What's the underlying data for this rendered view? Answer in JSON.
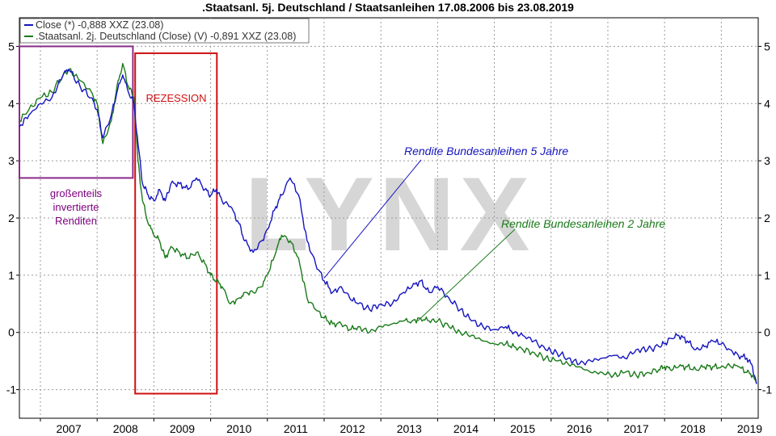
{
  "chart_data": {
    "type": "line",
    "title": ".Staatsanl. 5j. Deutschland / Staatsanleihen 17.08.2006 bis 23.08.2019",
    "xlabel": "",
    "ylabel": "",
    "xlim": [
      2006.63,
      2019.65
    ],
    "ylim": [
      -1.5,
      5.5
    ],
    "x_ticks": [
      "2007",
      "2008",
      "2009",
      "2010",
      "2011",
      "2012",
      "2013",
      "2014",
      "2015",
      "2016",
      "2017",
      "2018",
      "2019"
    ],
    "y_ticks": [
      "5",
      "4",
      "3",
      "2",
      "1",
      "0",
      "-1"
    ],
    "grid": true,
    "legend": {
      "placement": "top-left",
      "entries": [
        "Close (*) -0,888 XXZ (23.08)",
        ".Staatsanl. 2j. Deutschland (Close) (V) -0,891 XXZ (23.08)"
      ]
    },
    "series": [
      {
        "name": "Close (*) -0,888 XXZ (23.08)",
        "color": "#1515c0",
        "x": [
          2006.63,
          2006.8,
          2007.0,
          2007.2,
          2007.4,
          2007.5,
          2007.7,
          2007.9,
          2008.0,
          2008.1,
          2008.25,
          2008.35,
          2008.45,
          2008.55,
          2008.65,
          2008.72,
          2008.8,
          2008.9,
          2009.0,
          2009.1,
          2009.2,
          2009.3,
          2009.45,
          2009.6,
          2009.75,
          2009.9,
          2010.0,
          2010.1,
          2010.2,
          2010.35,
          2010.5,
          2010.6,
          2010.75,
          2010.9,
          2011.0,
          2011.15,
          2011.25,
          2011.4,
          2011.55,
          2011.7,
          2011.85,
          2012.0,
          2012.15,
          2012.3,
          2012.45,
          2012.6,
          2012.8,
          2013.0,
          2013.2,
          2013.4,
          2013.55,
          2013.7,
          2013.85,
          2014.0,
          2014.2,
          2014.4,
          2014.6,
          2014.8,
          2015.0,
          2015.2,
          2015.35,
          2015.5,
          2015.7,
          2015.9,
          2016.1,
          2016.3,
          2016.5,
          2016.7,
          2016.9,
          2017.1,
          2017.3,
          2017.5,
          2017.7,
          2017.9,
          2018.0,
          2018.1,
          2018.25,
          2018.4,
          2018.55,
          2018.7,
          2018.85,
          2019.0,
          2019.15,
          2019.3,
          2019.45,
          2019.55,
          2019.62
        ],
        "values": [
          3.6,
          3.8,
          4.0,
          4.1,
          4.5,
          4.6,
          4.3,
          4.1,
          3.9,
          3.4,
          3.8,
          4.2,
          4.5,
          4.2,
          4.0,
          3.3,
          2.6,
          2.4,
          2.3,
          2.5,
          2.3,
          2.6,
          2.6,
          2.5,
          2.7,
          2.5,
          2.4,
          2.5,
          2.3,
          2.2,
          1.9,
          1.6,
          1.4,
          1.6,
          1.8,
          2.2,
          2.4,
          2.7,
          2.4,
          1.6,
          1.2,
          0.9,
          0.7,
          0.8,
          0.6,
          0.5,
          0.4,
          0.5,
          0.5,
          0.7,
          0.8,
          0.9,
          0.7,
          0.8,
          0.6,
          0.4,
          0.2,
          0.1,
          0.05,
          0.1,
          0.0,
          -0.05,
          -0.15,
          -0.3,
          -0.35,
          -0.45,
          -0.55,
          -0.5,
          -0.45,
          -0.4,
          -0.45,
          -0.3,
          -0.3,
          -0.25,
          -0.2,
          -0.1,
          -0.05,
          -0.15,
          -0.3,
          -0.25,
          -0.15,
          -0.2,
          -0.3,
          -0.4,
          -0.45,
          -0.6,
          -0.9
        ]
      },
      {
        "name": ".Staatsanl. 2j. Deutschland (Close) (V) -0,891 XXZ (23.08)",
        "color": "#1a7a1a",
        "x": [
          2006.63,
          2006.8,
          2007.0,
          2007.2,
          2007.4,
          2007.5,
          2007.7,
          2007.9,
          2008.0,
          2008.1,
          2008.25,
          2008.35,
          2008.45,
          2008.55,
          2008.65,
          2008.72,
          2008.8,
          2008.9,
          2009.0,
          2009.1,
          2009.2,
          2009.3,
          2009.45,
          2009.6,
          2009.75,
          2009.9,
          2010.0,
          2010.1,
          2010.2,
          2010.35,
          2010.5,
          2010.6,
          2010.75,
          2010.9,
          2011.0,
          2011.15,
          2011.25,
          2011.4,
          2011.55,
          2011.7,
          2011.85,
          2012.0,
          2012.15,
          2012.3,
          2012.45,
          2012.6,
          2012.8,
          2013.0,
          2013.2,
          2013.4,
          2013.55,
          2013.7,
          2013.85,
          2014.0,
          2014.2,
          2014.4,
          2014.6,
          2014.8,
          2015.0,
          2015.2,
          2015.35,
          2015.5,
          2015.7,
          2015.9,
          2016.1,
          2016.3,
          2016.5,
          2016.7,
          2016.9,
          2017.1,
          2017.3,
          2017.5,
          2017.7,
          2017.9,
          2018.0,
          2018.1,
          2018.25,
          2018.4,
          2018.55,
          2018.7,
          2018.85,
          2019.0,
          2019.15,
          2019.3,
          2019.45,
          2019.55,
          2019.62
        ],
        "values": [
          3.7,
          3.9,
          4.1,
          4.2,
          4.5,
          4.6,
          4.4,
          4.2,
          4.0,
          3.3,
          3.7,
          4.3,
          4.7,
          4.3,
          4.1,
          3.0,
          2.3,
          1.9,
          1.7,
          1.6,
          1.3,
          1.5,
          1.4,
          1.3,
          1.4,
          1.2,
          1.0,
          0.9,
          0.8,
          0.5,
          0.6,
          0.7,
          0.7,
          0.8,
          1.0,
          1.4,
          1.7,
          1.6,
          1.3,
          0.6,
          0.4,
          0.25,
          0.15,
          0.15,
          0.05,
          0.1,
          0.0,
          0.1,
          0.15,
          0.2,
          0.2,
          0.25,
          0.2,
          0.2,
          0.1,
          0.0,
          -0.05,
          -0.15,
          -0.2,
          -0.2,
          -0.25,
          -0.3,
          -0.35,
          -0.45,
          -0.5,
          -0.55,
          -0.6,
          -0.7,
          -0.7,
          -0.75,
          -0.7,
          -0.75,
          -0.7,
          -0.65,
          -0.6,
          -0.65,
          -0.6,
          -0.6,
          -0.65,
          -0.6,
          -0.6,
          -0.6,
          -0.58,
          -0.6,
          -0.7,
          -0.75,
          -0.9
        ]
      }
    ],
    "annotations": [
      {
        "text": "REZESSION",
        "color": "#d01010"
      },
      {
        "text": "großenteils",
        "color": "#800080"
      },
      {
        "text": "invertierte",
        "color": "#800080"
      },
      {
        "text": "Renditen",
        "color": "#800080"
      },
      {
        "text": "Rendite Bundesanleihen 5 Jahre",
        "color": "#1515c0"
      },
      {
        "text": "Rendite Bundesanleihen 2 Jahre",
        "color": "#1a7a1a"
      }
    ],
    "watermark": "LYNX"
  }
}
